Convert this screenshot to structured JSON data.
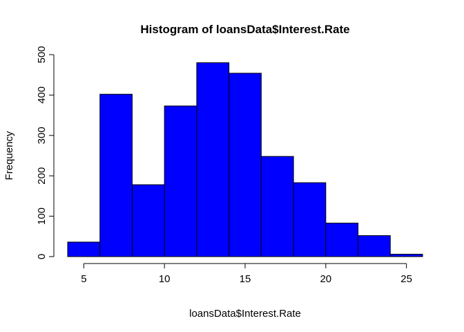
{
  "chart_data": {
    "type": "bar",
    "title": "Histogram of loansData$Interest.Rate",
    "xlabel": "loansData$Interest.Rate",
    "ylabel": "Frequency",
    "bar_color": "#0000ff",
    "bin_edges": [
      4,
      6,
      8,
      10,
      12,
      14,
      16,
      18,
      20,
      22,
      24,
      26
    ],
    "values": [
      36,
      402,
      178,
      373,
      480,
      454,
      248,
      183,
      83,
      52,
      6
    ],
    "xlim": [
      4,
      26
    ],
    "ylim": [
      0,
      500
    ],
    "x_ticks": [
      5,
      10,
      15,
      20,
      25
    ],
    "y_ticks": [
      0,
      100,
      200,
      300,
      400,
      500
    ],
    "grid": false,
    "legend": "none"
  }
}
